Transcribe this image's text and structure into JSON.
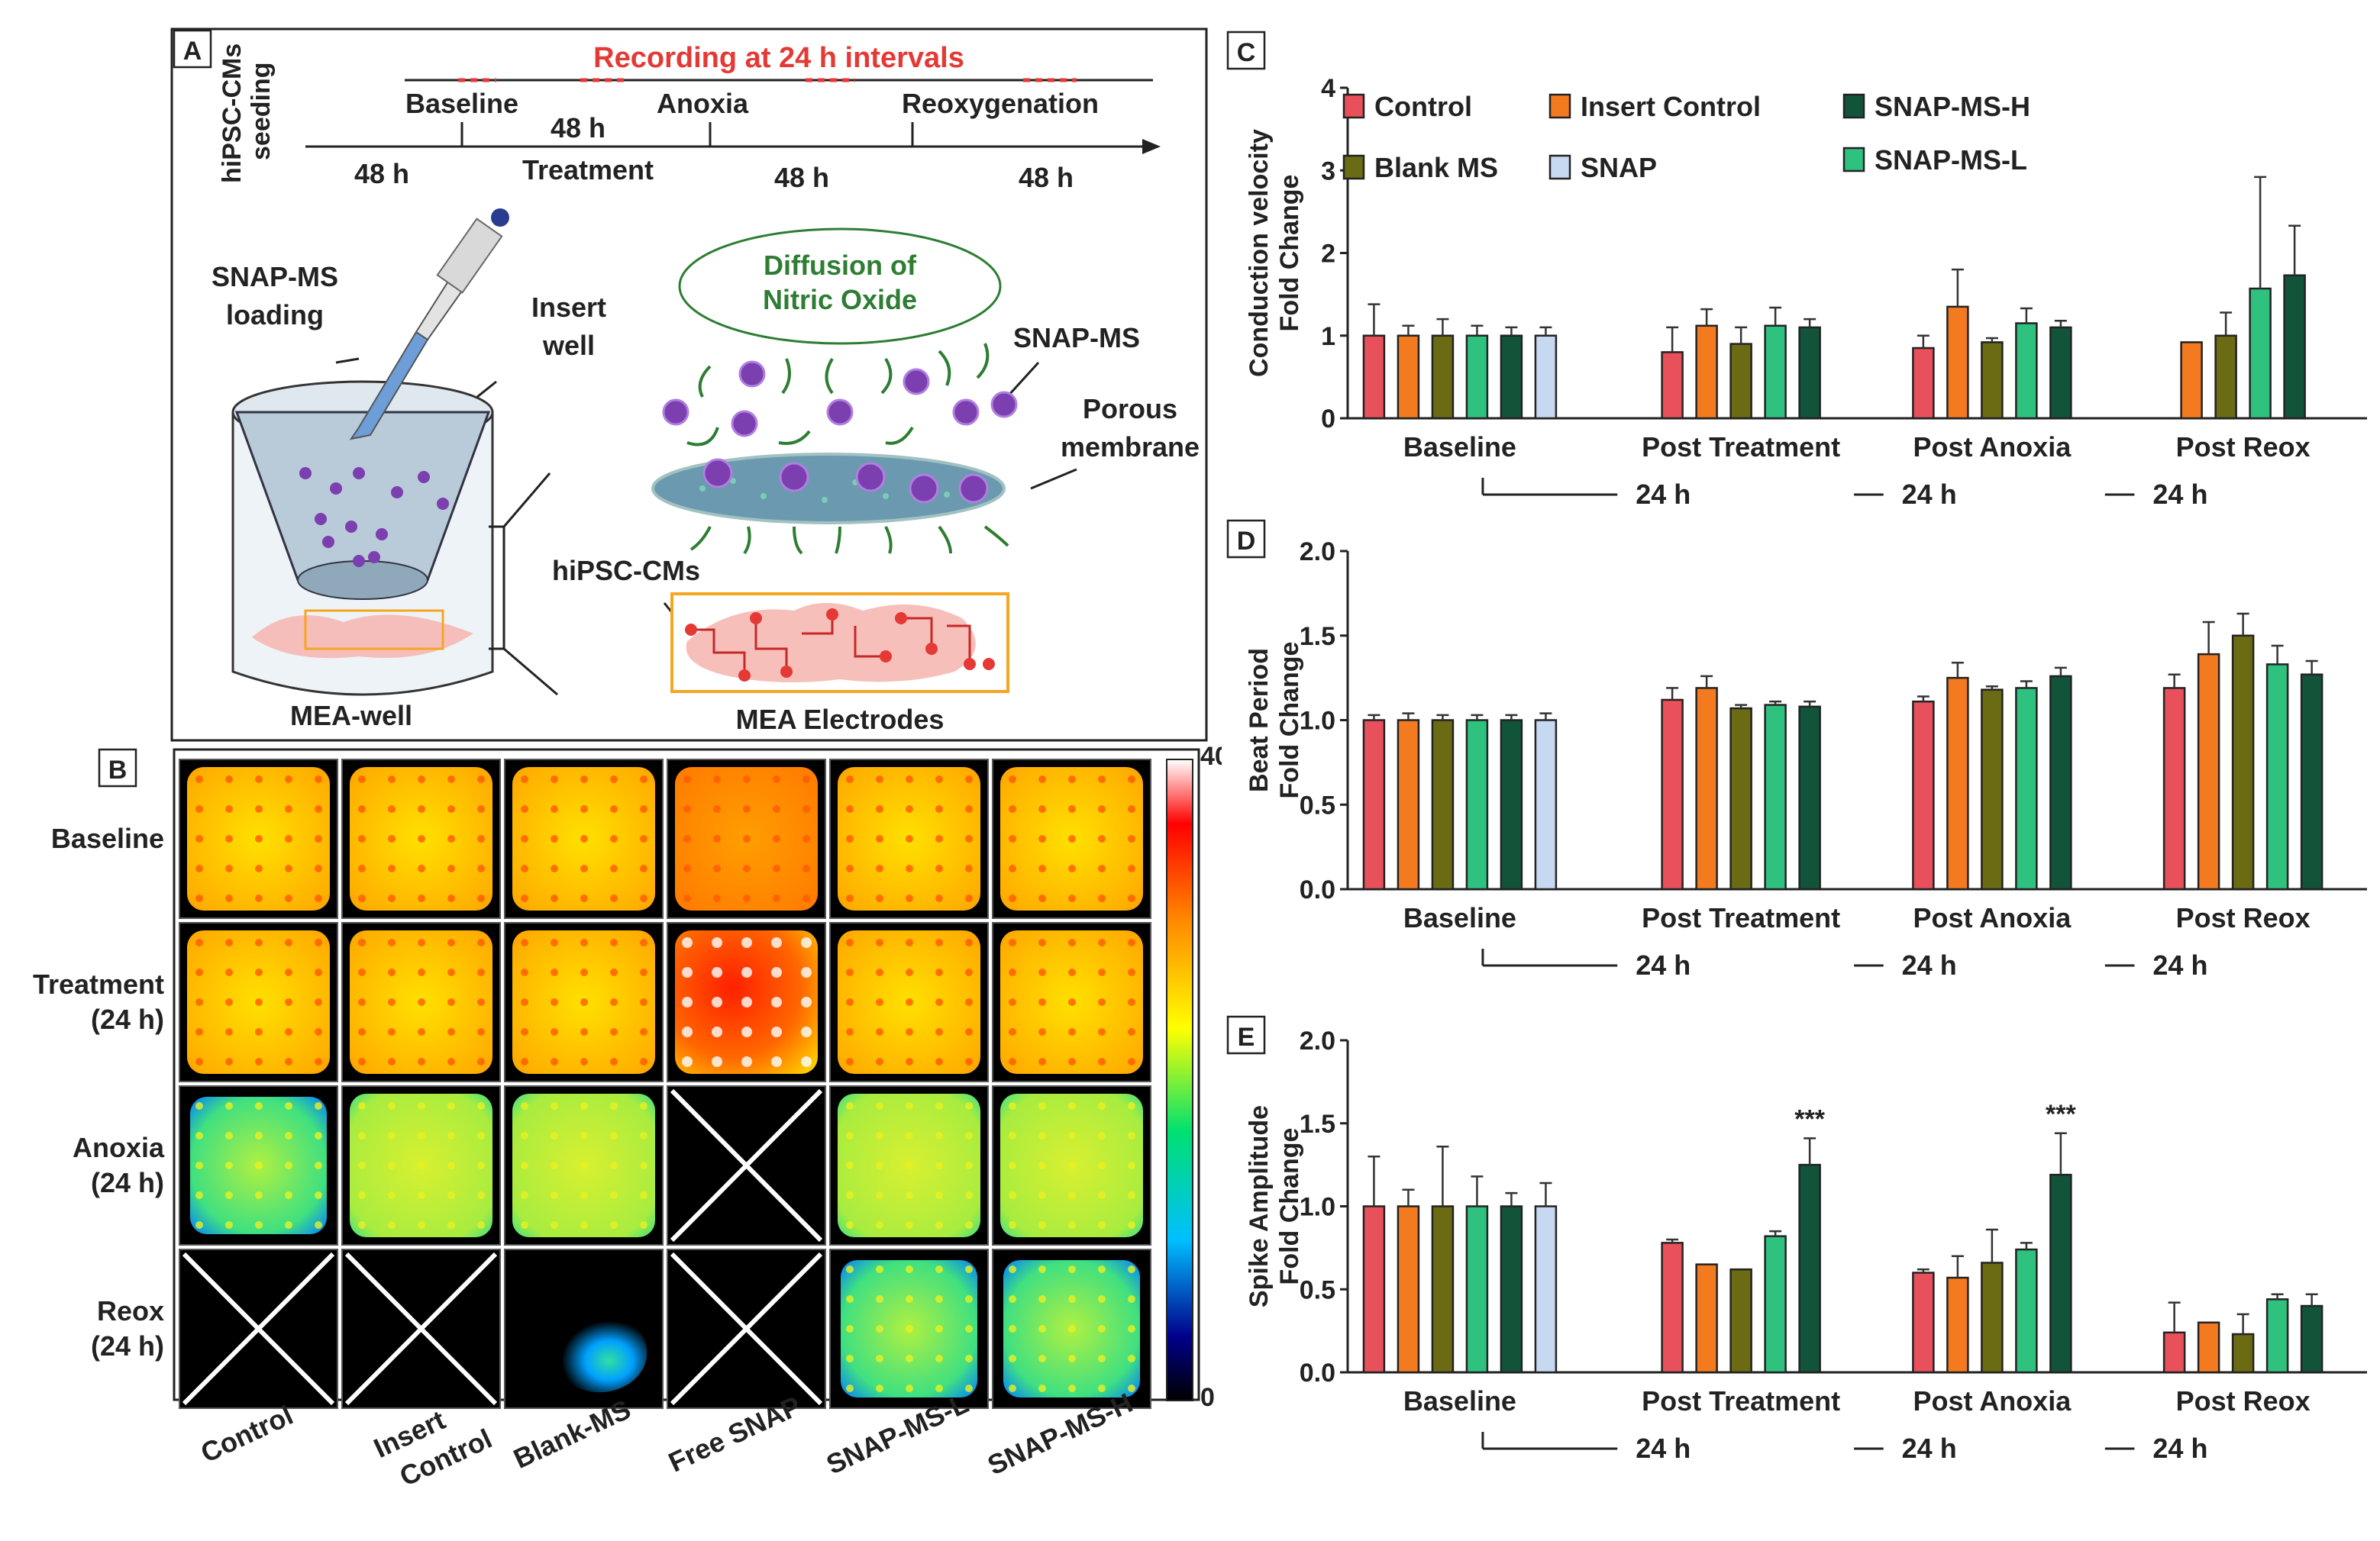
{
  "panelA": {
    "label": "A",
    "seeding": [
      "hiPSC-CMs",
      "seeding"
    ],
    "recording": "Recording at 24 h intervals",
    "phases": [
      "Baseline",
      "48 h",
      "Anoxia",
      "Reoxygenation"
    ],
    "treatment": "Treatment",
    "durations": [
      "48 h",
      "48 h",
      "48 h"
    ],
    "loading": [
      "SNAP-MS",
      "loading"
    ],
    "insert": [
      "Insert",
      "well"
    ],
    "diffusion": [
      "Diffusion of",
      "Nitric Oxide"
    ],
    "snapms": "SNAP-MS",
    "porous": [
      "Porous",
      "membrane"
    ],
    "cms": "hiPSC-CMs",
    "mea_well": "MEA-well",
    "mea_electrodes": "MEA Electrodes",
    "colors": {
      "green": "#2e7d32",
      "red": "#e53935",
      "purple": "#7b3fb0",
      "membrane": "#5b8fa8"
    }
  },
  "panelB": {
    "label": "B",
    "rows": [
      [
        "Baseline"
      ],
      [
        "Treatment",
        "(24 h)"
      ],
      [
        "Anoxia",
        "(24 h)"
      ],
      [
        "Reox",
        "(24 h)"
      ]
    ],
    "cols": [
      [
        "Control"
      ],
      [
        "Insert",
        "Control"
      ],
      [
        "Blank-MS"
      ],
      [
        "Free SNAP"
      ],
      [
        "SNAP-MS-L"
      ],
      [
        "SNAP-MS-H"
      ]
    ],
    "scale_max": "40",
    "scale_min": "0",
    "cells": [
      [
        "yellow",
        "yellow",
        "yellow",
        "orange",
        "yellow",
        "yellow"
      ],
      [
        "yellow",
        "yellow",
        "yellow",
        "red",
        "yellow",
        "yellow"
      ],
      [
        "green",
        "lightgreen",
        "lightgreen",
        "x",
        "lightgreen",
        "lightgreen"
      ],
      [
        "x",
        "x",
        "blob",
        "x",
        "green",
        "green"
      ]
    ]
  },
  "chart_data": [
    {
      "type": "bar",
      "panel": "C",
      "ylabel": [
        "Conduction velocity",
        "Fold Change"
      ],
      "ylim": [
        0,
        4
      ],
      "ticks": [
        "0",
        "1",
        "2",
        "3",
        "4"
      ],
      "groups": [
        "Baseline",
        "Post Treatment",
        "Post Anoxia",
        "Post Reox"
      ],
      "interval": "24 h",
      "legend": [
        "Control",
        "Insert Control",
        "SNAP-MS-H",
        "Blank MS",
        "SNAP",
        "SNAP-MS-L"
      ],
      "series": [
        {
          "name": "Control",
          "color": "#e8505b",
          "values": [
            1.0,
            0.8,
            0.85,
            null
          ],
          "err": [
            0.38,
            0.3,
            0.15,
            null
          ]
        },
        {
          "name": "Insert Control",
          "color": "#f47a20",
          "values": [
            1.0,
            1.12,
            1.35,
            0.92
          ],
          "err": [
            0.12,
            0.2,
            0.45,
            0
          ]
        },
        {
          "name": "Blank MS",
          "color": "#6b6b13",
          "values": [
            1.0,
            0.9,
            0.92,
            1.0
          ],
          "err": [
            0.2,
            0.2,
            0.05,
            0.28
          ]
        },
        {
          "name": "SNAP-MS-L",
          "color": "#2fc27f",
          "values": [
            1.0,
            1.12,
            1.15,
            1.57
          ],
          "err": [
            0.12,
            0.22,
            0.18,
            1.35
          ]
        },
        {
          "name": "SNAP-MS-H",
          "color": "#12543a",
          "values": [
            1.0,
            1.1,
            1.1,
            1.73
          ],
          "err": [
            0.1,
            0.1,
            0.08,
            0.6
          ]
        },
        {
          "name": "SNAP",
          "color": "#c6d9f1",
          "values": [
            1.0,
            null,
            null,
            null
          ],
          "err": [
            0.1,
            null,
            null,
            null
          ]
        }
      ]
    },
    {
      "type": "bar",
      "panel": "D",
      "ylabel": [
        "Beat Period",
        "Fold Change"
      ],
      "ylim": [
        0,
        2
      ],
      "ticks": [
        "0.0",
        "0.5",
        "1.0",
        "1.5",
        "2.0"
      ],
      "groups": [
        "Baseline",
        "Post Treatment",
        "Post Anoxia",
        "Post Reox"
      ],
      "interval": "24 h",
      "series": [
        {
          "name": "Control",
          "color": "#e8505b",
          "values": [
            1.0,
            1.12,
            1.11,
            1.19
          ],
          "err": [
            0.03,
            0.07,
            0.03,
            0.08
          ]
        },
        {
          "name": "Insert Control",
          "color": "#f47a20",
          "values": [
            1.0,
            1.19,
            1.25,
            1.39
          ],
          "err": [
            0.04,
            0.07,
            0.09,
            0.19
          ]
        },
        {
          "name": "Blank MS",
          "color": "#6b6b13",
          "values": [
            1.0,
            1.07,
            1.18,
            1.5
          ],
          "err": [
            0.03,
            0.02,
            0.02,
            0.13
          ]
        },
        {
          "name": "SNAP-MS-L",
          "color": "#2fc27f",
          "values": [
            1.0,
            1.09,
            1.19,
            1.33
          ],
          "err": [
            0.03,
            0.02,
            0.04,
            0.11
          ]
        },
        {
          "name": "SNAP-MS-H",
          "color": "#12543a",
          "values": [
            1.0,
            1.08,
            1.26,
            1.27
          ],
          "err": [
            0.03,
            0.03,
            0.05,
            0.08
          ]
        },
        {
          "name": "SNAP",
          "color": "#c6d9f1",
          "values": [
            1.0,
            null,
            null,
            null
          ],
          "err": [
            0.04,
            null,
            null,
            null
          ]
        }
      ]
    },
    {
      "type": "bar",
      "panel": "E",
      "ylabel": [
        "Spike Amplitude",
        "Fold Change"
      ],
      "ylim": [
        0,
        2
      ],
      "ticks": [
        "0.0",
        "0.5",
        "1.0",
        "1.5",
        "2.0"
      ],
      "groups": [
        "Baseline",
        "Post Treatment",
        "Post Anoxia",
        "Post Reox"
      ],
      "interval": "24 h",
      "annotations": [
        {
          "group": 1,
          "text": "***"
        },
        {
          "group": 2,
          "text": "***"
        }
      ],
      "series": [
        {
          "name": "Control",
          "color": "#e8505b",
          "values": [
            1.0,
            0.78,
            0.6,
            0.24
          ],
          "err": [
            0.3,
            0.02,
            0.02,
            0.18
          ]
        },
        {
          "name": "Insert Control",
          "color": "#f47a20",
          "values": [
            1.0,
            0.65,
            0.57,
            0.3
          ],
          "err": [
            0.1,
            0.0,
            0.13,
            0.0
          ]
        },
        {
          "name": "Blank MS",
          "color": "#6b6b13",
          "values": [
            1.0,
            0.62,
            0.66,
            0.23
          ],
          "err": [
            0.36,
            0.0,
            0.2,
            0.12
          ]
        },
        {
          "name": "SNAP-MS-L",
          "color": "#2fc27f",
          "values": [
            1.0,
            0.82,
            0.74,
            0.44
          ],
          "err": [
            0.18,
            0.03,
            0.04,
            0.03
          ]
        },
        {
          "name": "SNAP-MS-H",
          "color": "#12543a",
          "values": [
            1.0,
            1.25,
            1.19,
            0.4
          ],
          "err": [
            0.08,
            0.16,
            0.25,
            0.07
          ]
        },
        {
          "name": "SNAP",
          "color": "#c6d9f1",
          "values": [
            1.0,
            null,
            null,
            null
          ],
          "err": [
            0.14,
            null,
            null,
            null
          ]
        }
      ]
    }
  ]
}
